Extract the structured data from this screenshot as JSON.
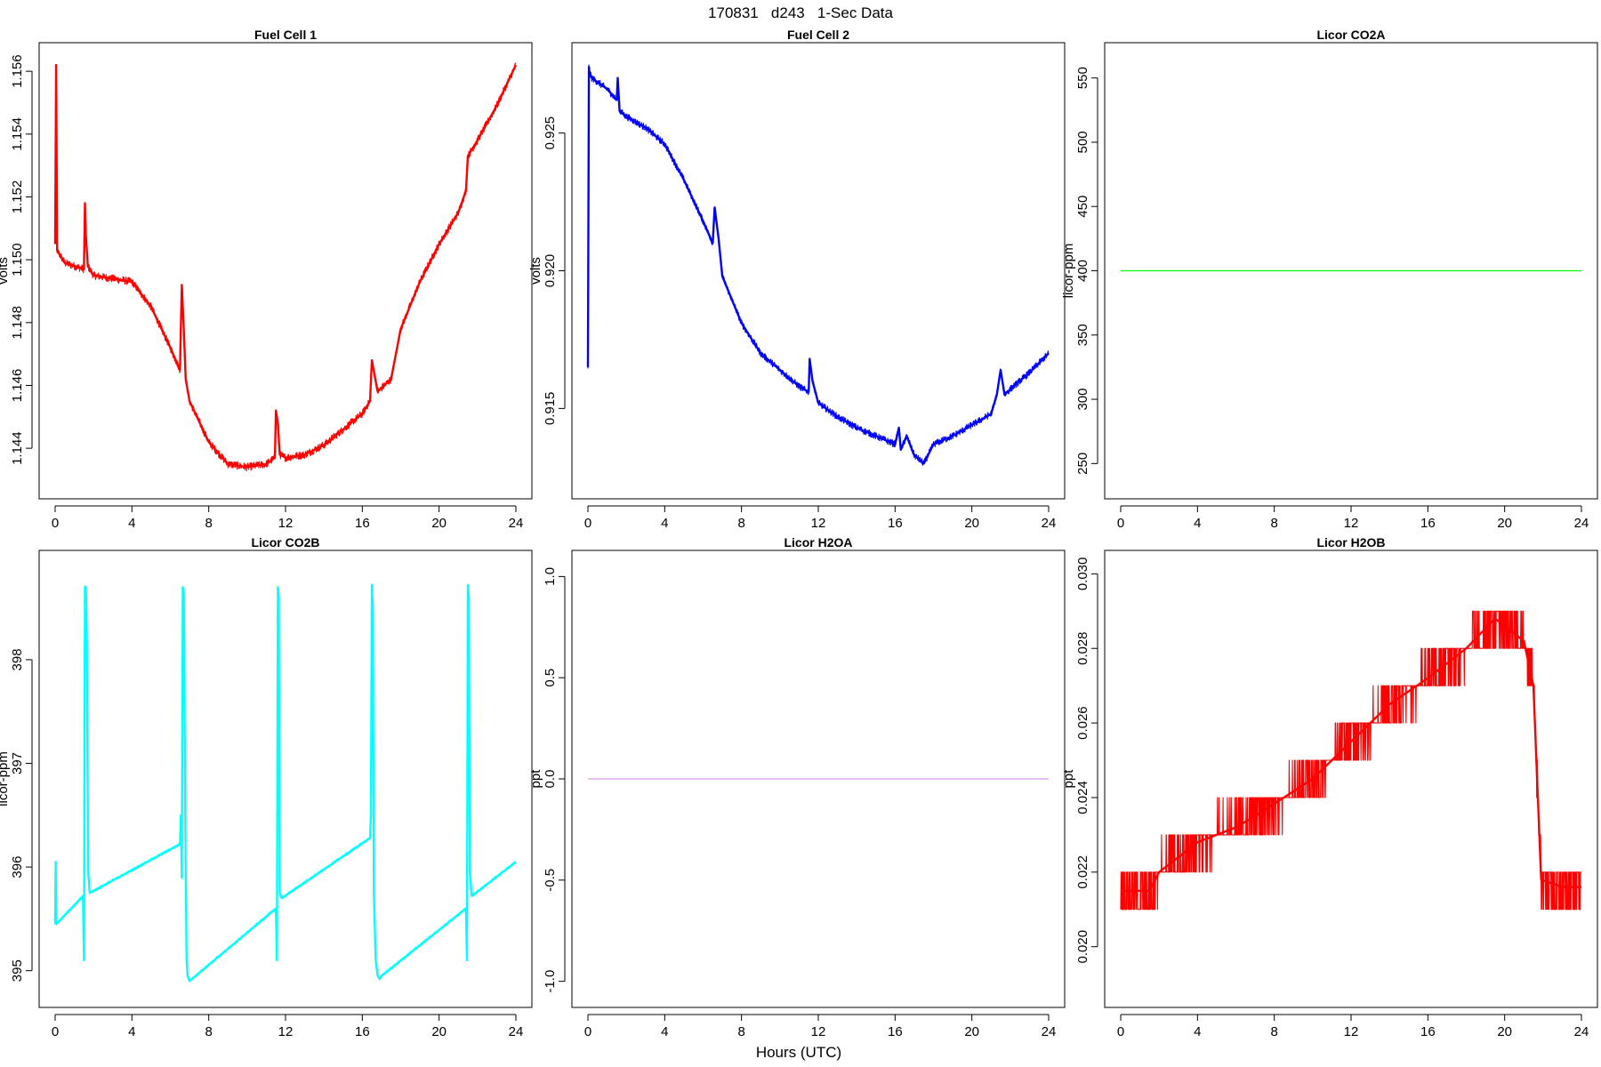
{
  "figure": {
    "title": "170831   d243   1-Sec Data",
    "xlabel": "Hours (UTC)"
  },
  "chart_data": [
    {
      "type": "line",
      "title": "Fuel Cell 1",
      "ylabel": "volts",
      "color": "#ff0000",
      "xlim": [
        0,
        24
      ],
      "ylim": [
        1.1429,
        1.1564
      ],
      "xticks": [
        0,
        4,
        8,
        12,
        16,
        20,
        24
      ],
      "yticks": [
        1.144,
        1.146,
        1.148,
        1.15,
        1.152,
        1.154,
        1.156
      ],
      "ytick_labels": [
        "1.144",
        "1.146",
        "1.148",
        "1.150",
        "1.152",
        "1.154",
        "1.156"
      ],
      "noise": 0.00025,
      "series": [
        {
          "x": [
            0,
            0.05,
            0.1,
            0.5,
            1.0,
            1.5,
            1.55,
            1.6,
            1.7,
            2.0,
            3.0,
            4.0,
            5.0,
            6.0,
            6.5,
            6.6,
            6.7,
            6.8,
            7.0,
            8.0,
            9.0,
            10.0,
            11.0,
            11.45,
            11.5,
            11.6,
            11.7,
            12.0,
            13.0,
            14.0,
            15.0,
            16.0,
            16.4,
            16.5,
            16.8,
            17.5,
            18.0,
            19.0,
            20.0,
            21.0,
            21.4,
            21.5,
            22.0,
            23.0,
            24.0
          ],
          "y": [
            1.1505,
            1.1562,
            1.1503,
            1.1499,
            1.1498,
            1.1497,
            1.1518,
            1.1508,
            1.1498,
            1.1495,
            1.1494,
            1.1493,
            1.1485,
            1.1472,
            1.1465,
            1.1492,
            1.1478,
            1.1462,
            1.1455,
            1.1442,
            1.1435,
            1.1434,
            1.1435,
            1.1437,
            1.1452,
            1.1448,
            1.1438,
            1.1437,
            1.1438,
            1.1441,
            1.1446,
            1.1451,
            1.1455,
            1.1468,
            1.1458,
            1.1462,
            1.1478,
            1.1493,
            1.1505,
            1.1515,
            1.1522,
            1.1533,
            1.1538,
            1.1549,
            1.1562
          ]
        }
      ]
    },
    {
      "type": "line",
      "title": "Fuel Cell 2",
      "ylabel": "volts",
      "color": "#0000ff",
      "xlim": [
        0,
        24
      ],
      "ylim": [
        0.9123,
        0.9277
      ],
      "xticks": [
        0,
        4,
        8,
        12,
        16,
        20,
        24
      ],
      "yticks": [
        0.915,
        0.92,
        0.925
      ],
      "ytick_labels": [
        "0.915",
        "0.920",
        "0.925"
      ],
      "noise": 0.00025,
      "series": [
        {
          "x": [
            0,
            0.05,
            0.08,
            0.2,
            1.0,
            1.5,
            1.55,
            1.65,
            2.0,
            3.0,
            4.0,
            5.0,
            6.0,
            6.5,
            6.6,
            6.8,
            7.0,
            8.0,
            9.0,
            10.0,
            11.0,
            11.5,
            11.55,
            11.7,
            12.0,
            13.0,
            14.0,
            15.0,
            16.0,
            16.2,
            16.3,
            16.6,
            17.0,
            17.5,
            18.0,
            19.0,
            20.0,
            21.0,
            21.3,
            21.5,
            21.7,
            22.0,
            23.0,
            24.0
          ],
          "y": [
            0.9165,
            0.9274,
            0.9272,
            0.927,
            0.9266,
            0.9262,
            0.927,
            0.9258,
            0.9256,
            0.9252,
            0.9246,
            0.9233,
            0.9218,
            0.921,
            0.9223,
            0.9212,
            0.9198,
            0.9181,
            0.917,
            0.9164,
            0.9158,
            0.9156,
            0.9168,
            0.916,
            0.9152,
            0.9147,
            0.9143,
            0.914,
            0.9137,
            0.9143,
            0.9135,
            0.914,
            0.9133,
            0.913,
            0.9137,
            0.914,
            0.9144,
            0.9148,
            0.9155,
            0.9164,
            0.9155,
            0.9157,
            0.9163,
            0.917
          ]
        }
      ]
    },
    {
      "type": "line",
      "title": "Licor CO2A",
      "ylabel": "licor-ppm",
      "color": "#00ff00",
      "xlim": [
        0,
        24
      ],
      "ylim": [
        235,
        565
      ],
      "xticks": [
        0,
        4,
        8,
        12,
        16,
        20,
        24
      ],
      "yticks": [
        250,
        300,
        350,
        400,
        450,
        500,
        550
      ],
      "ytick_labels": [
        "250",
        "300",
        "350",
        "400",
        "450",
        "500",
        "550"
      ],
      "noise": 0,
      "series": [
        {
          "x": [
            0,
            24
          ],
          "y": [
            400,
            400
          ]
        }
      ]
    },
    {
      "type": "line",
      "title": "Licor CO2B",
      "ylabel": "licor-ppm",
      "color": "#00ffff",
      "xlim": [
        0,
        24
      ],
      "ylim": [
        394.8,
        398.9
      ],
      "xticks": [
        0,
        4,
        8,
        12,
        16,
        20,
        24
      ],
      "yticks": [
        395,
        396,
        397,
        398
      ],
      "ytick_labels": [
        "395",
        "396",
        "397",
        "398"
      ],
      "noise": 0.03,
      "series": [
        {
          "x": [
            0,
            0.03,
            0.06,
            1.45,
            1.5,
            1.55,
            1.6,
            1.65,
            1.72,
            1.8,
            6.5,
            6.55,
            6.6,
            6.65,
            6.7,
            6.8,
            6.85,
            6.9,
            7.0,
            11.5,
            11.55,
            11.6,
            11.65,
            11.7,
            11.8,
            16.4,
            16.45,
            16.5,
            16.55,
            16.6,
            16.7,
            16.8,
            16.9,
            17.0,
            21.4,
            21.45,
            21.5,
            21.55,
            21.6,
            21.7,
            24.0
          ],
          "y": [
            395.45,
            396.05,
            395.45,
            395.72,
            395.1,
            398.7,
            398.7,
            398.2,
            395.95,
            395.75,
            396.22,
            396.5,
            395.9,
            398.7,
            398.65,
            395.9,
            395.1,
            394.95,
            394.9,
            395.6,
            395.1,
            398.7,
            398.6,
            395.75,
            395.7,
            396.28,
            396.5,
            398.72,
            398.5,
            395.75,
            395.1,
            394.95,
            394.92,
            394.95,
            395.6,
            395.1,
            398.72,
            398.6,
            395.95,
            395.72,
            396.05
          ]
        }
      ]
    },
    {
      "type": "line",
      "title": "Licor H2OA",
      "ylabel": "ppt",
      "color": "#dd99ee",
      "xlim": [
        0,
        24
      ],
      "ylim": [
        -1.05,
        1.05
      ],
      "xticks": [
        0,
        4,
        8,
        12,
        16,
        20,
        24
      ],
      "yticks": [
        -1.0,
        -0.5,
        0.0,
        0.5,
        1.0
      ],
      "ytick_labels": [
        "-1.0",
        "-0.5",
        "0.0",
        "0.5",
        "1.0"
      ],
      "noise": 0,
      "series": [
        {
          "x": [
            0,
            24
          ],
          "y": [
            0,
            0
          ]
        }
      ]
    },
    {
      "type": "line",
      "title": "Licor H2OB",
      "ylabel": "ppt",
      "color": "#ff0000",
      "xlim": [
        0,
        24
      ],
      "ylim": [
        0.0188,
        0.0302
      ],
      "xticks": [
        0,
        4,
        8,
        12,
        16,
        20,
        24
      ],
      "yticks": [
        0.02,
        0.022,
        0.024,
        0.026,
        0.028,
        0.03
      ],
      "ytick_labels": [
        "0.020",
        "0.022",
        "0.024",
        "0.026",
        "0.028",
        "0.030"
      ],
      "noise": 0.0011,
      "quantize": 0.001,
      "series": [
        {
          "x": [
            0,
            1.5,
            2.0,
            4.0,
            6.0,
            7.0,
            10.0,
            12.0,
            14.0,
            16.0,
            18.0,
            19.5,
            21.0,
            21.5,
            21.9,
            23.0,
            24.0
          ],
          "y": [
            0.0215,
            0.0215,
            0.022,
            0.0228,
            0.0232,
            0.0235,
            0.0245,
            0.0255,
            0.0265,
            0.0272,
            0.028,
            0.0288,
            0.0282,
            0.027,
            0.0218,
            0.0216,
            0.0216
          ]
        }
      ]
    }
  ]
}
